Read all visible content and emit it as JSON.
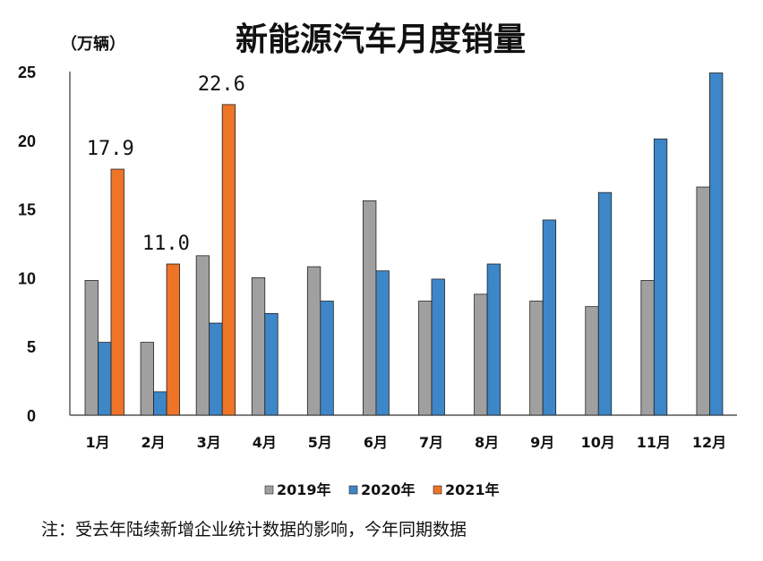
{
  "chart_data": {
    "type": "bar",
    "title": "新能源汽车月度销量",
    "ylabel": "（万辆）",
    "xlabel": "",
    "ylim": [
      0,
      25
    ],
    "yticks": [
      0,
      5,
      10,
      15,
      20,
      25
    ],
    "categories": [
      "1月",
      "2月",
      "3月",
      "4月",
      "5月",
      "6月",
      "7月",
      "8月",
      "9月",
      "10月",
      "11月",
      "12月"
    ],
    "series": [
      {
        "name": "2019年",
        "color": "#a0a0a0",
        "values": [
          9.8,
          5.3,
          11.6,
          10.0,
          10.8,
          15.6,
          8.3,
          8.8,
          8.3,
          7.9,
          9.8,
          16.6
        ]
      },
      {
        "name": "2020年",
        "color": "#3d86c8",
        "values": [
          5.3,
          1.7,
          6.7,
          7.4,
          8.3,
          10.5,
          9.9,
          11.0,
          14.2,
          16.2,
          20.1,
          24.9
        ]
      },
      {
        "name": "2021年",
        "color": "#ee7428",
        "values": [
          17.9,
          11.0,
          22.6,
          null,
          null,
          null,
          null,
          null,
          null,
          null,
          null,
          null
        ]
      }
    ],
    "data_labels": [
      {
        "series": 2,
        "index": 0,
        "text": "17.9"
      },
      {
        "series": 2,
        "index": 1,
        "text": "11.0"
      },
      {
        "series": 2,
        "index": 2,
        "text": "22.6"
      }
    ],
    "legend_position": "bottom",
    "grid": false
  },
  "note": "注：受去年陆续新增企业统计数据的影响，今年同期数据"
}
